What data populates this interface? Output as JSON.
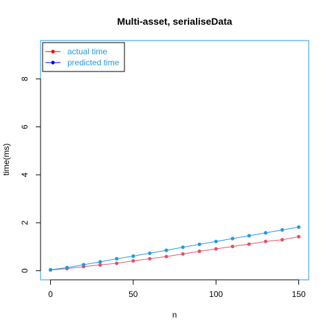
{
  "chart_data": {
    "type": "line",
    "title": "Multi-asset, serialiseData",
    "xlabel": "n",
    "ylabel": "time(ms)",
    "xlim": [
      -6,
      156
    ],
    "ylim": [
      -0.38,
      9.6
    ],
    "x_ticks": [
      0,
      50,
      100,
      150
    ],
    "y_ticks": [
      0,
      2,
      4,
      6,
      8
    ],
    "x": [
      0,
      10,
      20,
      30,
      40,
      50,
      60,
      70,
      80,
      90,
      100,
      110,
      120,
      130,
      140,
      150
    ],
    "series": [
      {
        "name": "actual time",
        "color": "#DF536B",
        "legend_marker_color": "#FF0000",
        "values": [
          0.03,
          0.09,
          0.17,
          0.24,
          0.31,
          0.41,
          0.5,
          0.59,
          0.7,
          0.81,
          0.91,
          1.01,
          1.11,
          1.22,
          1.29,
          1.42
        ]
      },
      {
        "name": "predicted time",
        "color": "#2297E6",
        "legend_marker_color": "#0000FF",
        "values": [
          0.04,
          0.13,
          0.25,
          0.37,
          0.5,
          0.61,
          0.73,
          0.85,
          0.98,
          1.1,
          1.22,
          1.34,
          1.46,
          1.58,
          1.7,
          1.82
        ]
      }
    ],
    "legend": {
      "placement": "top-left",
      "text_color": "#2297E6"
    },
    "box_color": "#2297E6",
    "grid": false
  }
}
